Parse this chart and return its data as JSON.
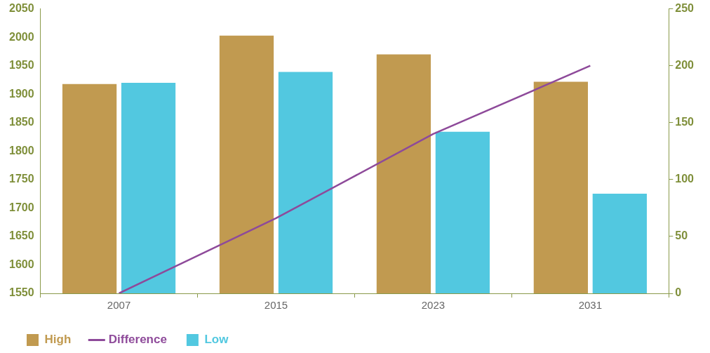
{
  "chart_data": {
    "type": "bar",
    "categories": [
      "2007",
      "2015",
      "2023",
      "2031"
    ],
    "series": [
      {
        "name": "High",
        "color": "#c19a50",
        "values": [
          1918,
          2003,
          1970,
          1922
        ]
      },
      {
        "name": "Difference",
        "type": "line",
        "axis": "y2",
        "color": "#8e4a9a",
        "values": [
          0,
          66,
          140,
          200
        ]
      },
      {
        "name": "Low",
        "color": "#52c8e0",
        "values": [
          1920,
          1939,
          1834,
          1725
        ]
      }
    ],
    "ylim": [
      1550,
      2050
    ],
    "yticks": [
      1550,
      1600,
      1650,
      1700,
      1750,
      1800,
      1850,
      1900,
      1950,
      2000,
      2050
    ],
    "y2lim": [
      0,
      250
    ],
    "y2ticks": [
      0,
      50,
      100,
      150,
      200,
      250
    ],
    "legend": "bottom left"
  }
}
